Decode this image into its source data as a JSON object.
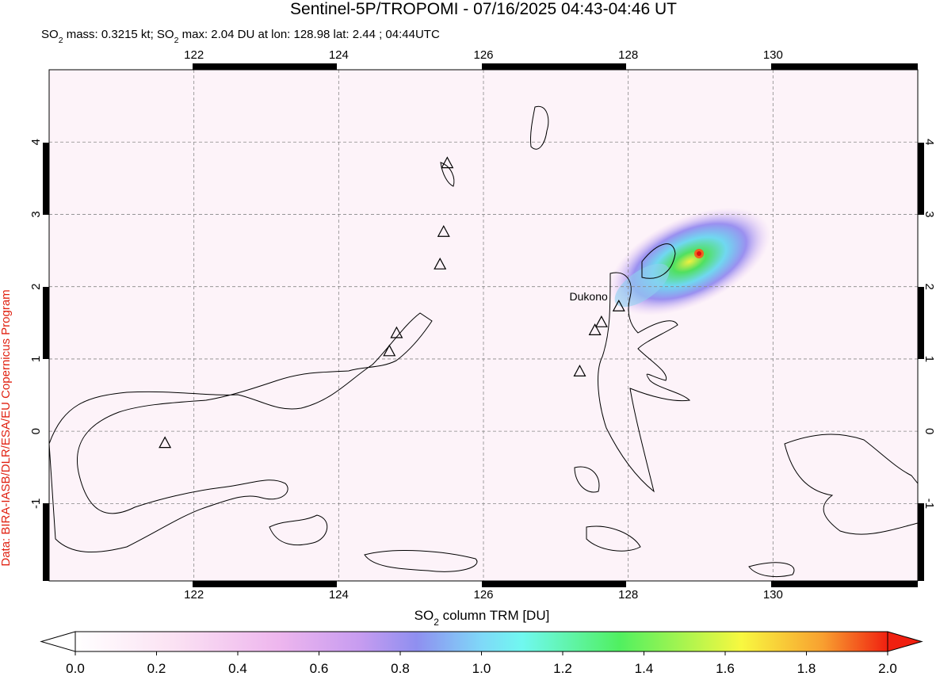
{
  "map": {
    "title": "Sentinel-5P/TROPOMI - 07/16/2025 04:43-04:46 UT",
    "subtitle_parts": [
      "SO",
      "2",
      " mass: 0.3215 kt; SO",
      "2",
      " max: 2.04 DU at lon: 128.98 lat: 2.44 ; 04:44UTC"
    ],
    "xlim": [
      120,
      132
    ],
    "ylim": [
      -2.07,
      5.0
    ],
    "lon_ticks": [
      122,
      124,
      126,
      128,
      130
    ],
    "lat_ticks": [
      -1,
      0,
      1,
      2,
      3,
      4
    ],
    "volcanoes": [
      {
        "lon": 121.6,
        "lat": -0.17
      },
      {
        "lon": 124.7,
        "lat": 1.1
      },
      {
        "lon": 124.8,
        "lat": 1.35
      },
      {
        "lon": 125.4,
        "lat": 2.3
      },
      {
        "lon": 125.45,
        "lat": 2.75
      },
      {
        "lon": 125.5,
        "lat": 3.7
      },
      {
        "lon": 127.33,
        "lat": 0.82
      },
      {
        "lon": 127.54,
        "lat": 1.39
      },
      {
        "lon": 127.63,
        "lat": 1.5
      },
      {
        "lon": 127.87,
        "lat": 1.72
      }
    ],
    "volcano_label": "Dukono",
    "credit": "Data: BIRA-IASB/DLR/ESA/EU Copernicus Program",
    "colorbar": {
      "label_parts": [
        "SO",
        "2",
        " column TRM [DU]"
      ],
      "range": [
        0,
        2
      ],
      "ticks": [
        {
          "value": 0,
          "label": "0.0"
        },
        {
          "value": 0.2,
          "label": "0.2"
        },
        {
          "value": 0.4,
          "label": "0.4"
        },
        {
          "value": 0.6,
          "label": "0.6"
        },
        {
          "value": 0.8,
          "label": "0.8"
        },
        {
          "value": 1,
          "label": "1.0"
        },
        {
          "value": 1.2,
          "label": "1.2"
        },
        {
          "value": 1.4,
          "label": "1.4"
        },
        {
          "value": 1.6,
          "label": "1.6"
        },
        {
          "value": 1.8,
          "label": "1.8"
        },
        {
          "value": 2,
          "label": "2.0"
        }
      ]
    }
  }
}
